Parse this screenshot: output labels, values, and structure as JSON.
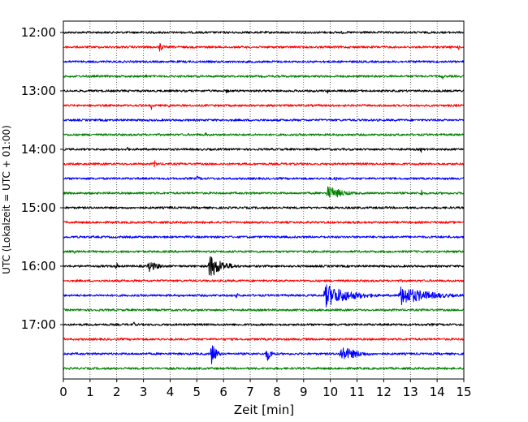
{
  "chart_data": {
    "type": "line",
    "title": "",
    "xlabel": "Zeit  [min]",
    "ylabel": "UTC (Lokalzeit = UTC + 01:00)",
    "xlim": [
      0,
      15
    ],
    "x_ticks": [
      "0",
      "1",
      "2",
      "3",
      "4",
      "5",
      "6",
      "7",
      "8",
      "9",
      "10",
      "11",
      "12",
      "13",
      "14",
      "15"
    ],
    "y_time_range": [
      "12:00",
      "17:45"
    ],
    "y_tick_labels": [
      "12:00",
      "13:00",
      "14:00",
      "15:00",
      "16:00",
      "17:00"
    ],
    "trace_interval_minutes": 15,
    "grid": "vertical dotted lines at each minute",
    "trace_colors": [
      "#000000",
      "#ff0000",
      "#0000ff",
      "#008000"
    ],
    "traces": [
      {
        "start": "12:00",
        "color": "#000000",
        "events": [
          {
            "x": 10.45,
            "amp": 4,
            "dur": 0.05
          }
        ]
      },
      {
        "start": "12:15",
        "color": "#ff0000",
        "events": [
          {
            "x": 3.6,
            "amp": 8,
            "dur": 0.25
          },
          {
            "x": 14.8,
            "amp": 5,
            "dur": 0.05
          }
        ]
      },
      {
        "start": "12:30",
        "color": "#0000ff",
        "events": []
      },
      {
        "start": "12:45",
        "color": "#008000",
        "events": [
          {
            "x": 3.1,
            "amp": 5,
            "dur": 0.05
          },
          {
            "x": 14.2,
            "amp": 5,
            "dur": 0.05
          }
        ]
      },
      {
        "start": "13:00",
        "color": "#000000",
        "events": [
          {
            "x": 6.1,
            "amp": 3,
            "dur": 0.3
          },
          {
            "x": 9.9,
            "amp": 4,
            "dur": 0.05
          }
        ]
      },
      {
        "start": "13:15",
        "color": "#ff0000",
        "events": [
          {
            "x": 3.3,
            "amp": 6,
            "dur": 0.05
          },
          {
            "x": 3.9,
            "amp": 3,
            "dur": 0.5
          },
          {
            "x": 14.75,
            "amp": 5,
            "dur": 0.05
          }
        ]
      },
      {
        "start": "13:30",
        "color": "#0000ff",
        "events": []
      },
      {
        "start": "13:45",
        "color": "#008000",
        "events": [
          {
            "x": 5.3,
            "amp": 4,
            "dur": 0.2
          }
        ]
      },
      {
        "start": "14:00",
        "color": "#000000",
        "events": [
          {
            "x": 2.4,
            "amp": 6,
            "dur": 0.05
          },
          {
            "x": 13.4,
            "amp": 5,
            "dur": 0.05
          }
        ]
      },
      {
        "start": "14:15",
        "color": "#ff0000",
        "events": [
          {
            "x": 3.4,
            "amp": 5,
            "dur": 0.3
          },
          {
            "x": 9.0,
            "amp": 3,
            "dur": 0.1
          }
        ]
      },
      {
        "start": "14:30",
        "color": "#0000ff",
        "events": [
          {
            "x": 5.0,
            "amp": 3,
            "dur": 0.6
          },
          {
            "x": 10.2,
            "amp": 5,
            "dur": 0.1
          }
        ]
      },
      {
        "start": "14:45",
        "color": "#008000",
        "events": [
          {
            "x": 9.9,
            "amp": 9,
            "dur": 1.3
          },
          {
            "x": 13.4,
            "amp": 8,
            "dur": 0.1
          }
        ]
      },
      {
        "start": "15:00",
        "color": "#000000",
        "events": [
          {
            "x": 4.0,
            "amp": 3,
            "dur": 0.3
          }
        ]
      },
      {
        "start": "15:15",
        "color": "#ff0000",
        "events": [
          {
            "x": 4.55,
            "amp": 6,
            "dur": 0.05
          }
        ]
      },
      {
        "start": "15:30",
        "color": "#0000ff",
        "events": []
      },
      {
        "start": "15:45",
        "color": "#008000",
        "events": [
          {
            "x": 0.4,
            "amp": 4,
            "dur": 0.05
          },
          {
            "x": 6.5,
            "amp": 4,
            "dur": 0.05
          }
        ]
      },
      {
        "start": "16:00",
        "color": "#000000",
        "events": [
          {
            "x": 2.0,
            "amp": 8,
            "dur": 0.05
          },
          {
            "x": 3.2,
            "amp": 7,
            "dur": 0.9
          },
          {
            "x": 5.45,
            "amp": 16,
            "dur": 1.1
          }
        ]
      },
      {
        "start": "16:15",
        "color": "#ff0000",
        "events": []
      },
      {
        "start": "16:30",
        "color": "#0000ff",
        "events": [
          {
            "x": 6.5,
            "amp": 8,
            "dur": 0.05
          },
          {
            "x": 9.8,
            "amp": 15,
            "dur": 2.0
          },
          {
            "x": 12.6,
            "amp": 13,
            "dur": 2.3
          }
        ]
      },
      {
        "start": "16:45",
        "color": "#008000",
        "events": [
          {
            "x": 3.8,
            "amp": 3,
            "dur": 0.05
          }
        ]
      },
      {
        "start": "17:00",
        "color": "#000000",
        "events": [
          {
            "x": 2.65,
            "amp": 8,
            "dur": 0.05
          },
          {
            "x": 13.8,
            "amp": 4,
            "dur": 0.05
          }
        ]
      },
      {
        "start": "17:15",
        "color": "#ff0000",
        "events": []
      },
      {
        "start": "17:30",
        "color": "#0000ff",
        "events": [
          {
            "x": 5.55,
            "amp": 18,
            "dur": 0.35
          },
          {
            "x": 7.6,
            "amp": 11,
            "dur": 0.4
          },
          {
            "x": 10.4,
            "amp": 10,
            "dur": 1.4
          }
        ]
      },
      {
        "start": "17:45",
        "color": "#008000",
        "events": []
      }
    ]
  }
}
